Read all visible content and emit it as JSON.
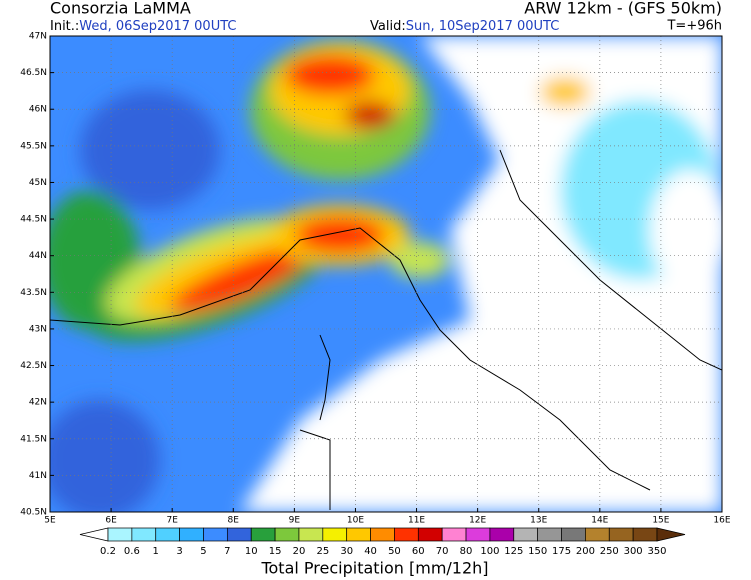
{
  "header": {
    "left_title": "Consorzia LaMMA",
    "right_title": "ARW 12km - (GFS 50km)",
    "init_label": "Init.:",
    "init_value": "Wed, 06Sep2017 00UTC",
    "valid_label": "Valid:",
    "valid_value": "Sun, 10Sep2017 00UTC",
    "lead_time": "T=+96h"
  },
  "map": {
    "lat_labels": [
      "47N",
      "46.5N",
      "46N",
      "45.5N",
      "45N",
      "44.5N",
      "44N",
      "43.5N",
      "43N",
      "42.5N",
      "42N",
      "41.5N",
      "41N",
      "40.5N"
    ],
    "lon_labels": [
      "5E",
      "6E",
      "7E",
      "8E",
      "9E",
      "10E",
      "11E",
      "12E",
      "13E",
      "14E",
      "15E",
      "16E"
    ]
  },
  "legend": {
    "title": "Total Precipitation [mm/12h]",
    "levels": [
      "0.2",
      "0.6",
      "1",
      "3",
      "5",
      "7",
      "10",
      "15",
      "20",
      "25",
      "30",
      "40",
      "50",
      "60",
      "70",
      "80",
      "100",
      "125",
      "150",
      "175",
      "200",
      "250",
      "300",
      "350"
    ],
    "colors": [
      "#ffffff",
      "#aaf5ff",
      "#80e8ff",
      "#50d0ff",
      "#30b0ff",
      "#3c8cff",
      "#3264dc",
      "#28a03c",
      "#7dc83c",
      "#c8e650",
      "#f5f000",
      "#ffc800",
      "#ff8c00",
      "#ff3200",
      "#d20000",
      "#ff82d2",
      "#dc3cdc",
      "#aa00aa",
      "#b4b4b4",
      "#969696",
      "#787878",
      "#b4822d",
      "#966420",
      "#784614",
      "#5a2d0a"
    ]
  }
}
